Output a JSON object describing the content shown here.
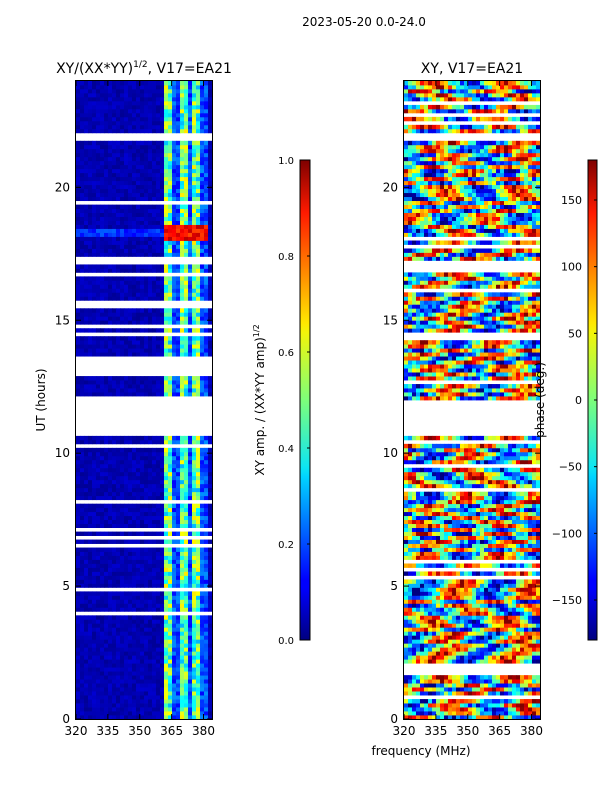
{
  "suptitle": "2023-05-20 0.0-24.0",
  "chart_data": [
    {
      "type": "heatmap",
      "title": "XY/(XX*YY)^{1/2}, V17=EA21",
      "title_base": "XY/(XX*YY)",
      "title_sup": "1/2",
      "title_rest": ", V17=EA21",
      "xlabel": "",
      "ylabel": "UT (hours)",
      "xlim": [
        320,
        384
      ],
      "ylim": [
        0,
        24
      ],
      "xticks": [
        320,
        335,
        350,
        365,
        380
      ],
      "yticks": [
        0,
        5,
        10,
        15,
        20
      ],
      "xticklabels": [
        "320",
        "335",
        "350",
        "365",
        "380"
      ],
      "yticklabels": [
        "0",
        "5",
        "10",
        "15",
        "20"
      ],
      "colormap": "jet",
      "gaps_hours": [
        [
          10.6,
          12.1
        ],
        [
          12.95,
          13.6
        ],
        [
          17.1,
          17.35
        ],
        [
          21.75,
          22.0
        ],
        [
          6.4,
          6.55
        ],
        [
          3.85,
          3.95
        ],
        [
          15.55,
          15.7
        ],
        [
          14.4,
          14.6
        ]
      ],
      "features": "mostly low (blue) amplitude; brighter vertical channels between 362 and 382 MHz; strong peaks near 18.3 h",
      "colorbar": {
        "label": "XY amp. / (XX*YY amp)^{1/2}",
        "label_base": "XY amp. / (XX*YY amp)",
        "label_sup": "1/2",
        "range": [
          0.0,
          1.0
        ],
        "ticks": [
          0.0,
          0.2,
          0.4,
          0.6,
          0.8,
          1.0
        ],
        "ticklabels": [
          "0.0",
          "0.2",
          "0.4",
          "0.6",
          "0.8",
          "1.0"
        ]
      }
    },
    {
      "type": "heatmap",
      "title": "XY, V17=EA21",
      "xlabel": "frequency (MHz)",
      "ylabel": "",
      "xlim": [
        320,
        384
      ],
      "ylim": [
        0,
        24
      ],
      "xticks": [
        320,
        335,
        350,
        365,
        380
      ],
      "yticks": [
        0,
        5,
        10,
        15,
        20
      ],
      "xticklabels": [
        "320",
        "335",
        "350",
        "365",
        "380"
      ],
      "yticklabels": [
        "0",
        "5",
        "10",
        "15",
        "20"
      ],
      "colormap": "jet",
      "gaps_hours": [
        [
          10.6,
          12.0
        ],
        [
          17.0,
          17.3
        ],
        [
          21.7,
          21.95
        ],
        [
          14.3,
          14.5
        ]
      ],
      "features": "phase values scattered across full range with diagonal banding",
      "colorbar": {
        "label": "phase (deg.)",
        "range": [
          -180,
          180
        ],
        "ticks": [
          -150,
          -100,
          -50,
          0,
          50,
          100,
          150
        ],
        "ticklabels": [
          "−150",
          "−100",
          "−50",
          "0",
          "50",
          "100",
          "150"
        ]
      }
    }
  ]
}
